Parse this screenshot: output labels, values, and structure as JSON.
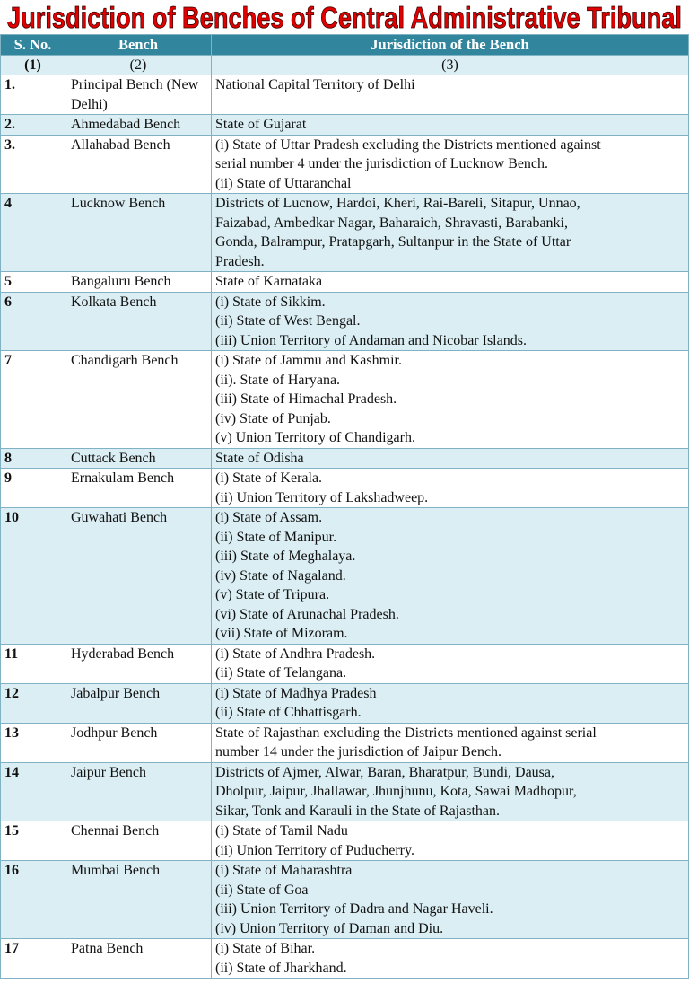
{
  "header": {
    "title": "Jurisdiction of Benches of Central Administrative Tribunal"
  },
  "table": {
    "columns": [
      "S. No.",
      "Bench",
      "Jurisdiction of the Bench"
    ],
    "numbering": [
      "(1)",
      "(2)",
      "(3)"
    ],
    "rows": [
      {
        "sno": "1.",
        "bench": "Principal Bench (New Delhi)",
        "jurisdiction": [
          "National Capital Territory of Delhi"
        ]
      },
      {
        "sno": "2.",
        "bench": "Ahmedabad Bench",
        "jurisdiction": [
          "State of Gujarat"
        ]
      },
      {
        "sno": "3.",
        "bench": "Allahabad Bench",
        "jurisdiction": [
          "(i) State of Uttar Pradesh excluding the Districts mentioned against",
          "serial number 4 under the jurisdiction of Lucknow Bench.",
          "(ii) State of Uttaranchal"
        ]
      },
      {
        "sno": "4",
        "bench": "Lucknow Bench",
        "jurisdiction": [
          "Districts of Lucnow, Hardoi, Kheri, Rai-Bareli, Sitapur, Unnao,",
          "Faizabad, Ambedkar Nagar, Baharaich, Shravasti, Barabanki,",
          "Gonda, Balrampur, Pratapgarh, Sultanpur in the State of Uttar",
          "Pradesh."
        ]
      },
      {
        "sno": "5",
        "bench": "Bangaluru Bench",
        "jurisdiction": [
          "State of Karnataka"
        ]
      },
      {
        "sno": "6",
        "bench": "Kolkata Bench",
        "jurisdiction": [
          "(i) State of Sikkim.",
          "(ii) State of West Bengal.",
          "(iii) Union Territory of Andaman and Nicobar Islands."
        ]
      },
      {
        "sno": "7",
        "bench": "Chandigarh Bench",
        "jurisdiction": [
          "(i) State of Jammu and Kashmir.",
          "(ii). State of Haryana.",
          "(iii) State of Himachal Pradesh.",
          "(iv) State of Punjab.",
          "(v) Union Territory of Chandigarh."
        ]
      },
      {
        "sno": "8",
        "bench": "Cuttack Bench",
        "jurisdiction": [
          "State of Odisha"
        ]
      },
      {
        "sno": "9",
        "bench": "Ernakulam Bench",
        "jurisdiction": [
          "(i) State of Kerala.",
          "(ii) Union Territory of Lakshadweep."
        ]
      },
      {
        "sno": "10",
        "bench": "Guwahati Bench",
        "jurisdiction": [
          "(i) State of Assam.",
          "(ii) State of Manipur.",
          "(iii) State of Meghalaya.",
          "(iv) State of Nagaland.",
          "(v) State of Tripura.",
          "(vi) State of Arunachal Pradesh.",
          "(vii) State of Mizoram."
        ]
      },
      {
        "sno": "11",
        "bench": "Hyderabad Bench",
        "jurisdiction": [
          "(i) State of Andhra Pradesh.",
          "(ii) State of Telangana."
        ]
      },
      {
        "sno": "12",
        "bench": "Jabalpur Bench",
        "jurisdiction": [
          "(i) State of Madhya Pradesh",
          "(ii) State of Chhattisgarh."
        ]
      },
      {
        "sno": "13",
        "bench": "Jodhpur Bench",
        "jurisdiction": [
          "State of Rajasthan excluding the Districts mentioned against serial",
          "number 14 under the jurisdiction of Jaipur Bench."
        ]
      },
      {
        "sno": "14",
        "bench": "Jaipur Bench",
        "jurisdiction": [
          "Districts of Ajmer, Alwar, Baran, Bharatpur, Bundi, Dausa,",
          "Dholpur, Jaipur, Jhallawar, Jhunjhunu, Kota, Sawai Madhopur,",
          "Sikar, Tonk and Karauli in the State of Rajasthan."
        ]
      },
      {
        "sno": "15",
        "bench": "Chennai Bench",
        "jurisdiction": [
          "(i) State of Tamil Nadu",
          "(ii) Union Territory of Puducherry."
        ]
      },
      {
        "sno": "16",
        "bench": "Mumbai Bench",
        "jurisdiction": [
          "(i) State of Maharashtra",
          "(ii) State of Goa",
          "(iii) Union Territory of Dadra and Nagar Haveli.",
          "(iv) Union Territory of Daman and Diu."
        ]
      },
      {
        "sno": "17",
        "bench": "Patna Bench",
        "jurisdiction": [
          "(i) State of Bihar.",
          "(ii) State of Jharkhand."
        ]
      }
    ]
  }
}
